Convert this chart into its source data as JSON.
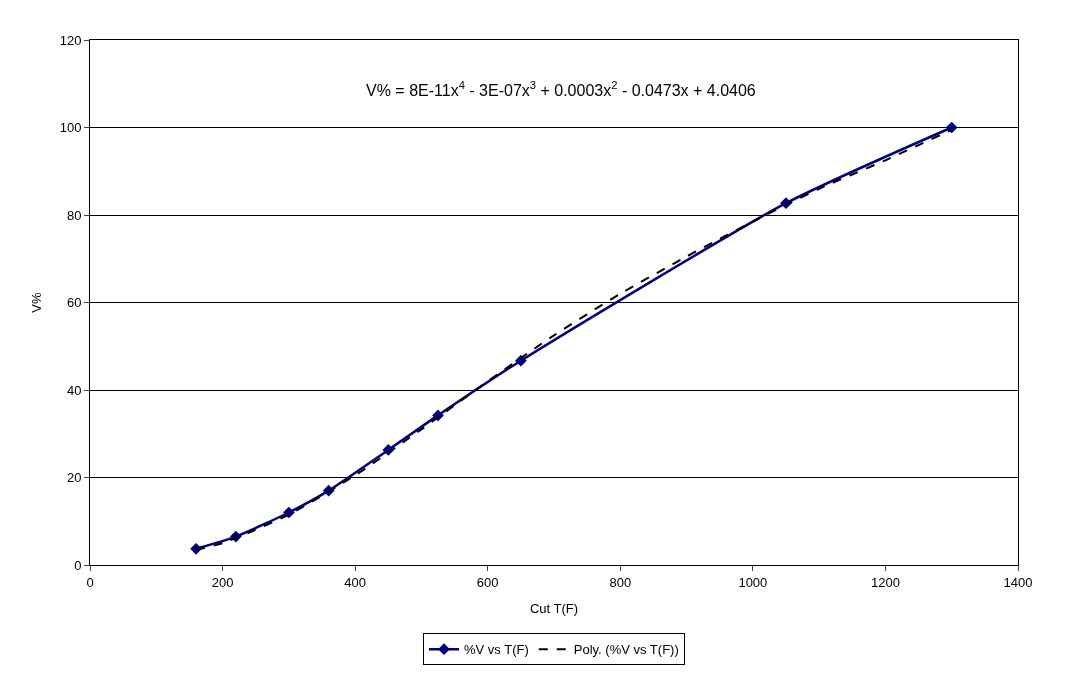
{
  "chart_data": {
    "type": "line",
    "xlabel": "Cut T(F)",
    "ylabel": "V%",
    "annotations": [
      "V% = 8E-11x$^{4}$ - 3E-07x$^{3}$ + 0.0003x$^{2}$ - 0.0473x + 4.0406"
    ],
    "x": [
      160,
      220,
      300,
      360,
      450,
      525,
      650,
      1050,
      1300
    ],
    "series": [
      {
        "name": "%V vs T(F)",
        "color": "#000080",
        "marker": "diamond",
        "line_style": "solid",
        "values": [
          3.7,
          6.5,
          12,
          17,
          26.3,
          34.2,
          46.7,
          82.7,
          100
        ]
      },
      {
        "name": "Poly. (%V vs T(F))",
        "color": "#000000",
        "marker": "none",
        "line_style": "dashed",
        "x": [
          160,
          200,
          300,
          400,
          500,
          600,
          700,
          800,
          900,
          1000,
          1100,
          1200,
          1300
        ],
        "values": [
          3.5,
          5,
          11.5,
          20.5,
          31,
          42,
          52.5,
          62,
          70.5,
          78.5,
          86,
          92.5,
          99.5
        ]
      }
    ],
    "xlim": [
      0,
      1400
    ],
    "xticks": [
      0,
      200,
      400,
      600,
      800,
      1000,
      1200,
      1400
    ],
    "ylim": [
      0,
      120
    ],
    "yticks": [
      0,
      20,
      40,
      60,
      80,
      100,
      120
    ],
    "grid": "y",
    "legend": "bottom"
  }
}
